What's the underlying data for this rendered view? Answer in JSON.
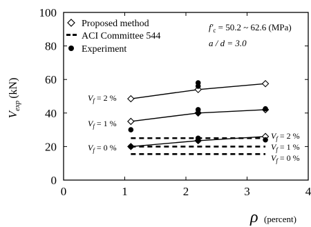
{
  "chart_data": {
    "type": "scatter",
    "xlabel_symbol": "ρ",
    "xlabel_unit": "(percent)",
    "ylabel_symbol": "V",
    "ylabel_sub": "exp",
    "ylabel_unit": "(kN)",
    "xlim": [
      0,
      4
    ],
    "ylim": [
      0,
      100
    ],
    "xticks": [
      "0",
      "1",
      "2",
      "3",
      "4"
    ],
    "yticks": [
      "0",
      "20",
      "40",
      "60",
      "80",
      "100"
    ],
    "legend": {
      "placement": "top-left",
      "entries": [
        {
          "marker": "diamond",
          "label": "Proposed method"
        },
        {
          "marker": "dash",
          "label": "ACI Committee 544"
        },
        {
          "marker": "dot",
          "label": "Experiment"
        }
      ]
    },
    "annotations": {
      "fc_symbol": "f'",
      "fc_sub": "c",
      "fc_value": " = 50.2 ~ 62.6 (MPa)",
      "ad_text": "a / d = 3.0"
    },
    "vf_symbol": "V",
    "vf_sub": "f",
    "proposed_series": [
      {
        "label_value": " = 2 %",
        "x": [
          1.1,
          2.2,
          3.3
        ],
        "y": [
          48.5,
          54,
          57.5
        ]
      },
      {
        "label_value": " = 1 %",
        "x": [
          1.1,
          2.2,
          3.3
        ],
        "y": [
          35,
          40,
          42
        ]
      },
      {
        "label_value": " = 0 %",
        "x": [
          1.1,
          2.2,
          3.3
        ],
        "y": [
          20,
          23.5,
          26
        ]
      }
    ],
    "aci_series": [
      {
        "label_value": " = 2 %",
        "x": [
          1.1,
          3.3
        ],
        "y": [
          25,
          25
        ]
      },
      {
        "label_value": " = 1 %",
        "x": [
          1.1,
          3.3
        ],
        "y": [
          20,
          20
        ]
      },
      {
        "label_value": " = 0 %",
        "x": [
          1.1,
          3.3
        ],
        "y": [
          15.5,
          15.5
        ]
      }
    ],
    "experiment_points": [
      {
        "x": 1.1,
        "y": 30
      },
      {
        "x": 1.1,
        "y": 20
      },
      {
        "x": 2.2,
        "y": 58
      },
      {
        "x": 2.2,
        "y": 56
      },
      {
        "x": 2.2,
        "y": 42
      },
      {
        "x": 2.2,
        "y": 40
      },
      {
        "x": 2.2,
        "y": 25
      },
      {
        "x": 2.2,
        "y": 23.5
      },
      {
        "x": 3.3,
        "y": 42.5
      },
      {
        "x": 3.3,
        "y": 24
      }
    ]
  }
}
